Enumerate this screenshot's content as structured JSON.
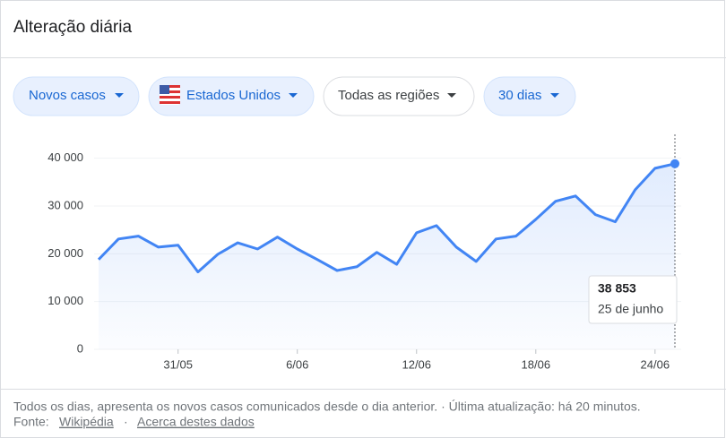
{
  "header": {
    "title": "Alteração diária"
  },
  "filters": [
    "Novos casos",
    "Estados Unidos",
    "Todas as regiões",
    "30 dias"
  ],
  "chart_data": {
    "type": "line",
    "categories": [
      null,
      null,
      null,
      null,
      "31/05",
      null,
      null,
      null,
      null,
      null,
      "6/06",
      null,
      null,
      null,
      null,
      null,
      "12/06",
      null,
      null,
      null,
      null,
      null,
      "18/06",
      null,
      null,
      null,
      null,
      null,
      "24/06",
      null
    ],
    "series": [
      {
        "name": "Novos casos",
        "color": "#4285f4",
        "values": [
          18800,
          23100,
          23700,
          21400,
          21800,
          16200,
          19900,
          22300,
          21000,
          23500,
          21000,
          18800,
          16500,
          17300,
          20300,
          17800,
          24400,
          25900,
          21400,
          18400,
          23100,
          23700,
          27200,
          31000,
          32100,
          28200,
          26700,
          33400,
          37900,
          38853
        ],
        "value_labels": [
          null,
          null,
          null,
          null,
          null,
          null,
          null,
          null,
          null,
          null,
          null,
          null,
          null,
          null,
          null,
          null,
          null,
          null,
          null,
          null,
          null,
          null,
          null,
          null,
          null,
          null,
          null,
          null,
          null,
          "38 853"
        ]
      }
    ],
    "tooltip": {
      "date": "25 de junho"
    },
    "ylim": [
      0,
      45000
    ],
    "yticks": [
      0,
      {
        "value": 10000,
        "label": "10 000"
      },
      {
        "value": 20000,
        "label": "20 000"
      },
      {
        "value": 30000,
        "label": "30 000"
      },
      {
        "value": 40000,
        "label": "40 000"
      }
    ],
    "grid": true
  },
  "footer": {
    "note": "Todos os dias, apresenta os novos casos comunicados desde o dia anterior. · Última atualização: há 20 minutos.",
    "source_label": "Fonte:",
    "source_link": "Wikipédia",
    "about_link": "Acerca destes dados"
  }
}
